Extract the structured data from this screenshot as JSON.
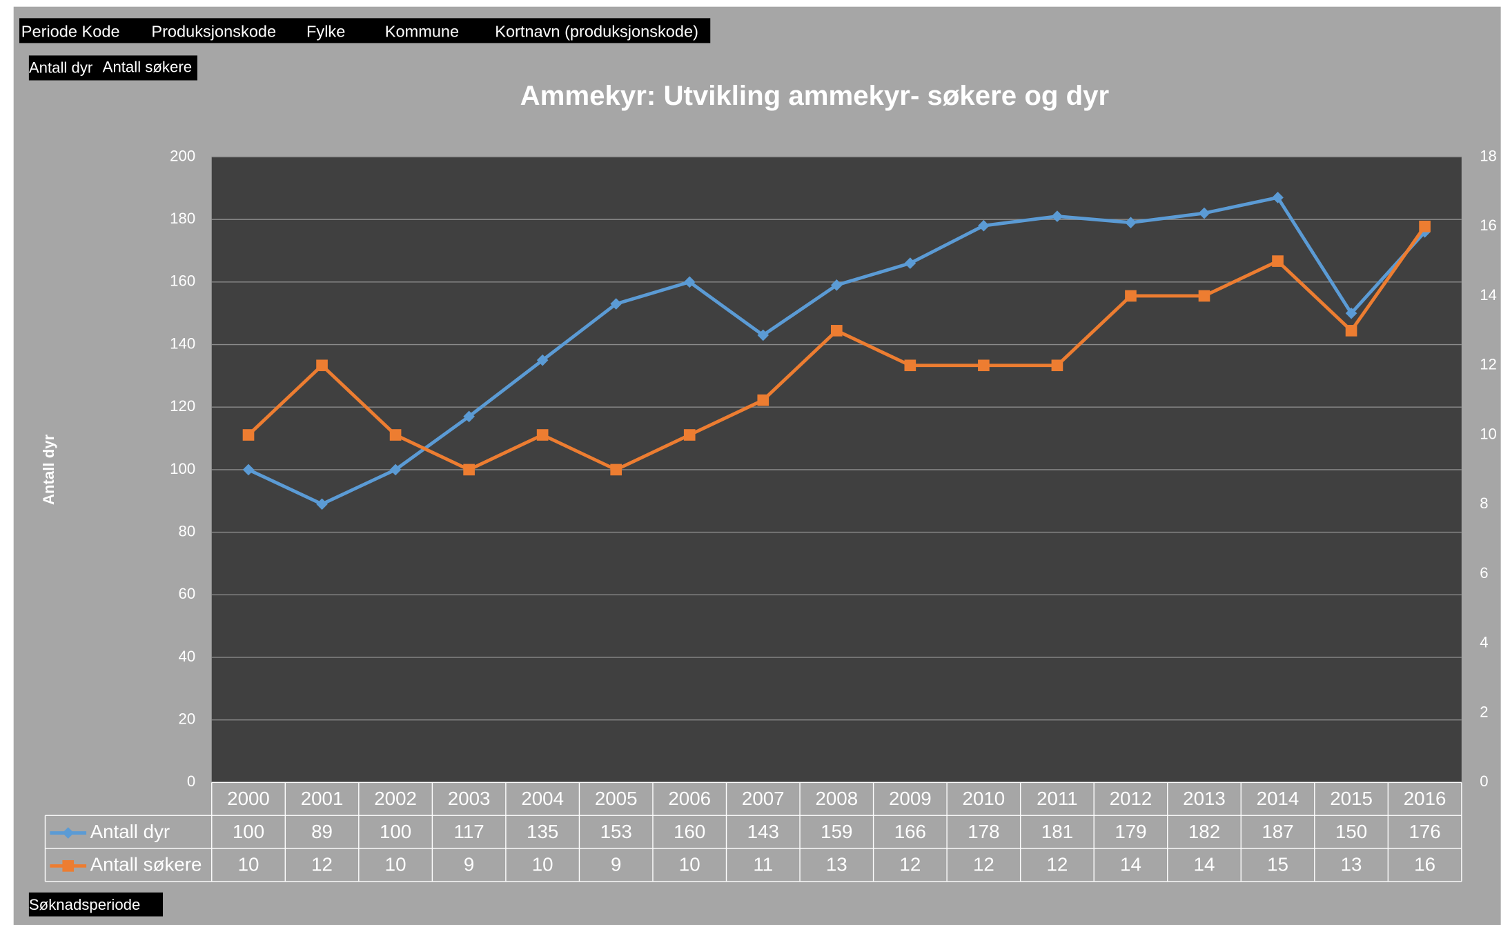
{
  "chart_data": {
    "type": "line",
    "title": "Ammekyr: Utvikling ammekyr- søkere og dyr",
    "filter_buttons": [
      "Periode Kode",
      "Produksjonskode",
      "Fylke",
      "Kommune",
      "Kortnavn (produksjonskode)"
    ],
    "value_buttons": [
      "Antall dyr",
      "Antall søkere"
    ],
    "axis_button": "Søknadsperiode",
    "y_label": "Antall dyr",
    "categories": [
      "2000",
      "2001",
      "2002",
      "2003",
      "2004",
      "2005",
      "2006",
      "2007",
      "2008",
      "2009",
      "2010",
      "2011",
      "2012",
      "2013",
      "2014",
      "2015",
      "2016"
    ],
    "series": [
      {
        "name": "Antall dyr",
        "color": "#5b9bd5",
        "marker": "diamond",
        "values": [
          100,
          89,
          100,
          117,
          135,
          153,
          160,
          143,
          159,
          166,
          178,
          181,
          179,
          182,
          187,
          150,
          176
        ]
      },
      {
        "name": "Antall søkere",
        "color": "#ed7d31",
        "marker": "square",
        "axis": "y2",
        "values": [
          10,
          12,
          10,
          9,
          10,
          9,
          10,
          11,
          13,
          12,
          12,
          12,
          14,
          14,
          15,
          13,
          16
        ]
      }
    ],
    "ylim": [
      0,
      200
    ],
    "yticks": [
      0,
      20,
      40,
      60,
      80,
      100,
      120,
      140,
      160,
      180,
      200
    ],
    "y2lim": [
      0,
      18
    ],
    "y2ticks": [
      0,
      2,
      4,
      6,
      8,
      10,
      12,
      14,
      16,
      18
    ],
    "grid": true,
    "data_table": true
  }
}
